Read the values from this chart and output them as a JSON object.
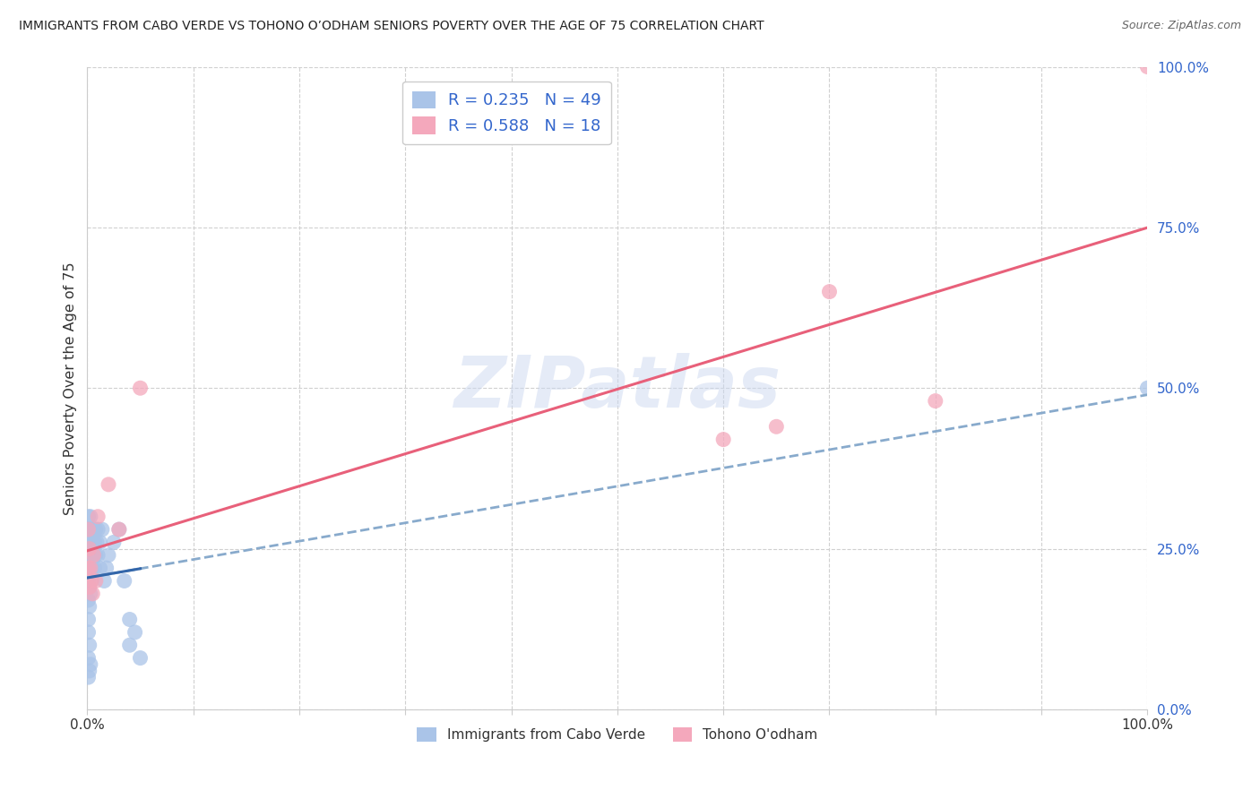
{
  "title": "IMMIGRANTS FROM CABO VERDE VS TOHONO O’ODHAM SENIORS POVERTY OVER THE AGE OF 75 CORRELATION CHART",
  "source": "Source: ZipAtlas.com",
  "ylabel": "Seniors Poverty Over the Age of 75",
  "background_color": "#ffffff",
  "grid_color": "#d0d0d0",
  "cabo_verde_color": "#aac4e8",
  "tohono_color": "#f4a8bc",
  "cabo_verde_line_color": "#3366aa",
  "cabo_verde_line_dash_color": "#88aacc",
  "tohono_line_color": "#e8607a",
  "label_color": "#3366cc",
  "R_cabo": 0.235,
  "N_cabo": 49,
  "R_tohono": 0.588,
  "N_tohono": 18,
  "cabo_verde_x": [
    0.001,
    0.001,
    0.001,
    0.001,
    0.001,
    0.001,
    0.002,
    0.002,
    0.002,
    0.002,
    0.002,
    0.003,
    0.003,
    0.003,
    0.003,
    0.004,
    0.004,
    0.004,
    0.005,
    0.005,
    0.006,
    0.006,
    0.007,
    0.007,
    0.008,
    0.008,
    0.009,
    0.01,
    0.01,
    0.012,
    0.012,
    0.014,
    0.016,
    0.018,
    0.02,
    0.025,
    0.03,
    0.035,
    0.04,
    0.04,
    0.045,
    0.05,
    0.001,
    0.001,
    0.001,
    0.002,
    0.002,
    0.003,
    1.0
  ],
  "cabo_verde_y": [
    0.3,
    0.27,
    0.24,
    0.2,
    0.17,
    0.14,
    0.28,
    0.25,
    0.22,
    0.19,
    0.16,
    0.3,
    0.26,
    0.22,
    0.18,
    0.28,
    0.24,
    0.2,
    0.26,
    0.22,
    0.28,
    0.24,
    0.26,
    0.22,
    0.28,
    0.24,
    0.26,
    0.28,
    0.24,
    0.26,
    0.22,
    0.28,
    0.2,
    0.22,
    0.24,
    0.26,
    0.28,
    0.2,
    0.14,
    0.1,
    0.12,
    0.08,
    0.05,
    0.08,
    0.12,
    0.06,
    0.1,
    0.07,
    0.5
  ],
  "tohono_x": [
    0.001,
    0.001,
    0.002,
    0.002,
    0.003,
    0.004,
    0.005,
    0.006,
    0.008,
    0.01,
    0.02,
    0.03,
    0.05,
    0.6,
    0.65,
    0.7,
    0.8,
    1.0
  ],
  "tohono_y": [
    0.28,
    0.22,
    0.25,
    0.19,
    0.22,
    0.2,
    0.18,
    0.24,
    0.2,
    0.3,
    0.35,
    0.28,
    0.5,
    0.42,
    0.44,
    0.65,
    0.48,
    1.0
  ],
  "ytick_values": [
    0.0,
    0.25,
    0.5,
    0.75,
    1.0
  ],
  "xtick_values": [
    0.0,
    0.1,
    0.2,
    0.3,
    0.4,
    0.5,
    0.6,
    0.7,
    0.8,
    0.9,
    1.0
  ],
  "xtick_show": [
    true,
    false,
    false,
    false,
    false,
    false,
    false,
    false,
    false,
    false,
    true
  ],
  "watermark": "ZIPatlas"
}
